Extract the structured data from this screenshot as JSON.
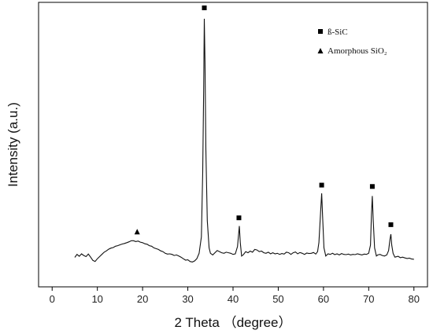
{
  "chart_data": {
    "type": "line",
    "title": "",
    "xlabel": "2 Theta （degree）",
    "ylabel": "Intensity (a.u.)",
    "xlim": [
      -3,
      83
    ],
    "ylim": [
      0,
      100
    ],
    "xticks": [
      0,
      10,
      20,
      30,
      40,
      50,
      60,
      70,
      80
    ],
    "yticks_shown": false,
    "grid": false,
    "legend_position": "top-right",
    "series": [
      {
        "points": [
          [
            5,
            8.5
          ],
          [
            5.5,
            9.6
          ],
          [
            6,
            8.9
          ],
          [
            6.5,
            9.8
          ],
          [
            7,
            9.2
          ],
          [
            7.5,
            8.8
          ],
          [
            8,
            9.7
          ],
          [
            8.5,
            8.6
          ],
          [
            9,
            7.4
          ],
          [
            9.5,
            7.0
          ],
          [
            10,
            8.0
          ],
          [
            10.5,
            8.8
          ],
          [
            11,
            9.6
          ],
          [
            11.5,
            10.4
          ],
          [
            12,
            10.9
          ],
          [
            12.5,
            11.5
          ],
          [
            13,
            11.9
          ],
          [
            13.5,
            12.1
          ],
          [
            14,
            12.6
          ],
          [
            14.5,
            12.8
          ],
          [
            15,
            13.1
          ],
          [
            15.5,
            13.4
          ],
          [
            16,
            13.6
          ],
          [
            16.5,
            13.9
          ],
          [
            17,
            14.2
          ],
          [
            17.5,
            14.6
          ],
          [
            18,
            14.6
          ],
          [
            18.5,
            14.3
          ],
          [
            19,
            14.5
          ],
          [
            19.5,
            14.1
          ],
          [
            20,
            13.9
          ],
          [
            20.5,
            13.5
          ],
          [
            21,
            13.3
          ],
          [
            21.5,
            12.8
          ],
          [
            22,
            12.6
          ],
          [
            22.5,
            12.0
          ],
          [
            23,
            11.7
          ],
          [
            23.5,
            11.4
          ],
          [
            24,
            10.9
          ],
          [
            24.5,
            10.6
          ],
          [
            25,
            10.0
          ],
          [
            25.5,
            9.7
          ],
          [
            26,
            9.8
          ],
          [
            26.5,
            9.6
          ],
          [
            27,
            9.2
          ],
          [
            27.5,
            9.4
          ],
          [
            28,
            9.0
          ],
          [
            28.5,
            8.6
          ],
          [
            29,
            8.0
          ],
          [
            29.5,
            7.5
          ],
          [
            30,
            7.6
          ],
          [
            30.5,
            7.0
          ],
          [
            31,
            6.8
          ],
          [
            31.5,
            7.2
          ],
          [
            32,
            8.0
          ],
          [
            32.5,
            10.0
          ],
          [
            33,
            16.0
          ],
          [
            33.3,
            40.0
          ],
          [
            33.5,
            70.0
          ],
          [
            33.65,
            96.0
          ],
          [
            33.8,
            80.0
          ],
          [
            34,
            48.0
          ],
          [
            34.3,
            22.0
          ],
          [
            34.7,
            12.0
          ],
          [
            35,
            10.0
          ],
          [
            35.5,
            9.4
          ],
          [
            36,
            10.2
          ],
          [
            36.5,
            11.0
          ],
          [
            37,
            10.6
          ],
          [
            37.5,
            10.2
          ],
          [
            38,
            10.0
          ],
          [
            38.5,
            10.4
          ],
          [
            39,
            10.2
          ],
          [
            39.5,
            10.0
          ],
          [
            40,
            9.6
          ],
          [
            40.5,
            9.8
          ],
          [
            41,
            12.5
          ],
          [
            41.4,
            20.0
          ],
          [
            41.6,
            14.0
          ],
          [
            41.9,
            9.0
          ],
          [
            42.3,
            9.5
          ],
          [
            42.8,
            10.6
          ],
          [
            43.3,
            10.2
          ],
          [
            43.8,
            10.8
          ],
          [
            44.3,
            10.4
          ],
          [
            44.8,
            11.4
          ],
          [
            45.3,
            11.2
          ],
          [
            45.8,
            10.6
          ],
          [
            46.3,
            10.8
          ],
          [
            46.8,
            10.2
          ],
          [
            47.3,
            10.0
          ],
          [
            47.8,
            10.4
          ],
          [
            48.3,
            9.8
          ],
          [
            48.8,
            10.2
          ],
          [
            49.3,
            9.8
          ],
          [
            49.8,
            10.0
          ],
          [
            50.3,
            9.6
          ],
          [
            50.8,
            9.9
          ],
          [
            51.3,
            9.7
          ],
          [
            51.8,
            10.4
          ],
          [
            52.3,
            10.2
          ],
          [
            52.8,
            9.6
          ],
          [
            53.3,
            10.2
          ],
          [
            53.8,
            10.5
          ],
          [
            54.3,
            9.8
          ],
          [
            54.8,
            10.3
          ],
          [
            55.3,
            10.0
          ],
          [
            55.8,
            9.6
          ],
          [
            56.3,
            10.1
          ],
          [
            56.8,
            9.9
          ],
          [
            57.3,
            10.0
          ],
          [
            57.8,
            10.3
          ],
          [
            58.3,
            9.7
          ],
          [
            58.7,
            10.6
          ],
          [
            59.0,
            14.0
          ],
          [
            59.4,
            26.0
          ],
          [
            59.6,
            32.0
          ],
          [
            59.8,
            24.0
          ],
          [
            60.1,
            12.0
          ],
          [
            60.5,
            9.0
          ],
          [
            61,
            9.8
          ],
          [
            61.5,
            9.6
          ],
          [
            62,
            10.0
          ],
          [
            62.5,
            9.5
          ],
          [
            63,
            9.8
          ],
          [
            63.5,
            9.4
          ],
          [
            64,
            9.9
          ],
          [
            64.5,
            9.6
          ],
          [
            65,
            9.5
          ],
          [
            65.5,
            9.7
          ],
          [
            66,
            9.4
          ],
          [
            66.5,
            9.6
          ],
          [
            67,
            9.5
          ],
          [
            67.5,
            9.8
          ],
          [
            68,
            9.6
          ],
          [
            68.5,
            9.4
          ],
          [
            69,
            9.7
          ],
          [
            69.5,
            9.6
          ],
          [
            70,
            10.0
          ],
          [
            70.4,
            13.0
          ],
          [
            70.6,
            24.0
          ],
          [
            70.8,
            31.0
          ],
          [
            71.0,
            22.0
          ],
          [
            71.3,
            12.0
          ],
          [
            71.7,
            9.0
          ],
          [
            72,
            9.4
          ],
          [
            72.5,
            9.6
          ],
          [
            73,
            9.2
          ],
          [
            73.5,
            9.0
          ],
          [
            74,
            9.4
          ],
          [
            74.4,
            11.0
          ],
          [
            74.7,
            15.0
          ],
          [
            74.9,
            17.0
          ],
          [
            75.1,
            13.0
          ],
          [
            75.4,
            10.0
          ],
          [
            75.8,
            8.6
          ],
          [
            76.5,
            8.9
          ],
          [
            77,
            8.4
          ],
          [
            77.5,
            8.6
          ],
          [
            78,
            8.3
          ],
          [
            78.5,
            8.1
          ],
          [
            79,
            8.2
          ],
          [
            79.5,
            7.9
          ],
          [
            80,
            7.8
          ]
        ]
      }
    ],
    "markers": [
      {
        "symbol": "square",
        "x": 33.65,
        "y": 100
      },
      {
        "symbol": "square",
        "x": 41.3,
        "y": 23.0
      },
      {
        "symbol": "square",
        "x": 59.6,
        "y": 35.0
      },
      {
        "symbol": "square",
        "x": 70.8,
        "y": 34.5
      },
      {
        "symbol": "square",
        "x": 74.9,
        "y": 20.5
      },
      {
        "symbol": "triangle",
        "x": 18.8,
        "y": 17.8
      }
    ],
    "legend": [
      {
        "symbol": "square",
        "label": "ß-SiC"
      },
      {
        "symbol": "triangle",
        "label": "Amorphous SiO₂"
      }
    ]
  }
}
